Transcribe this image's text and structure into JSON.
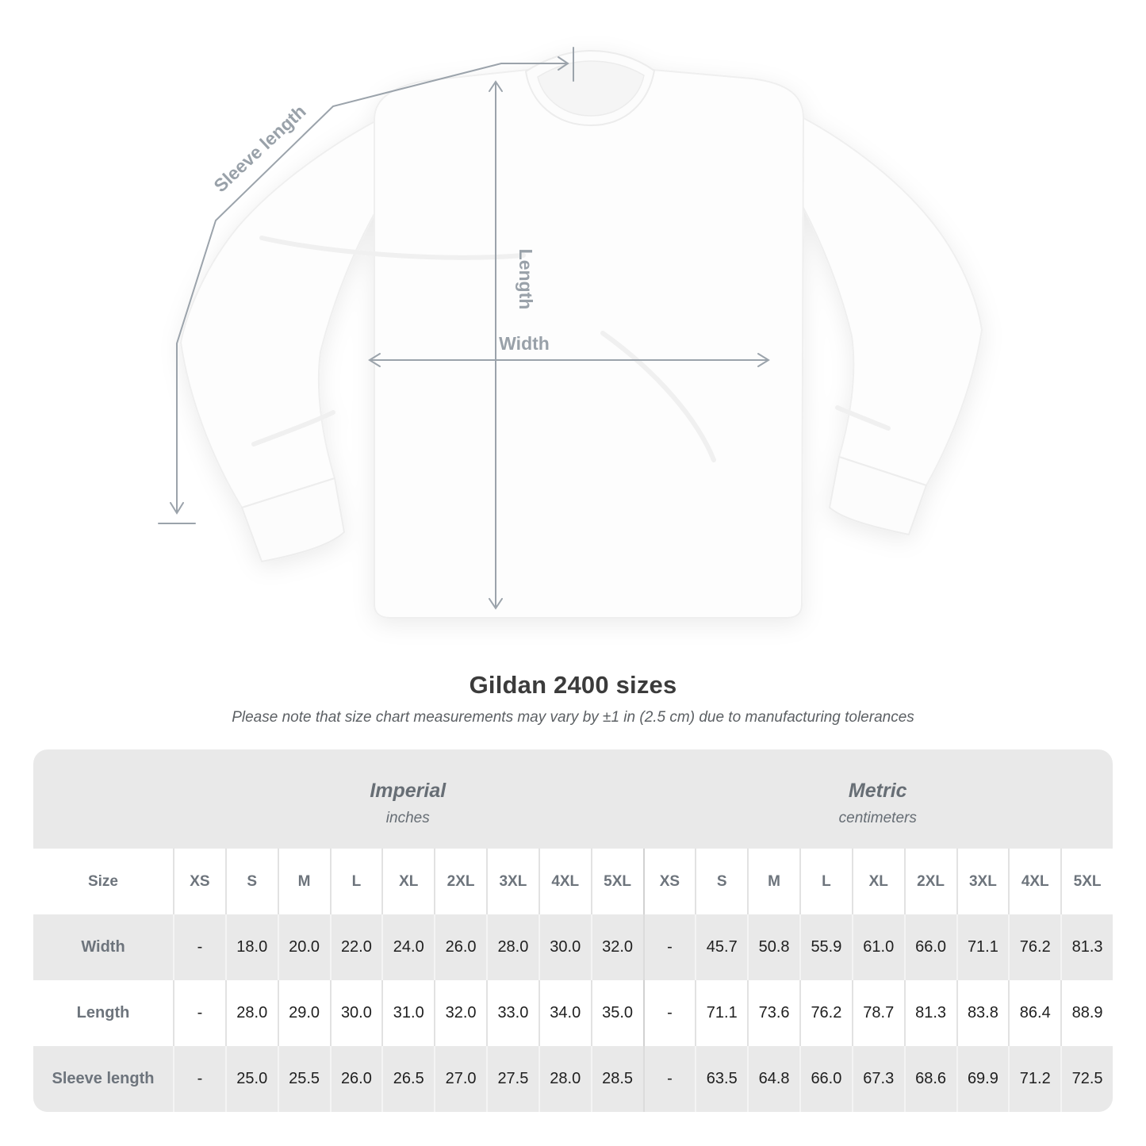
{
  "diagram": {
    "sleeve_length_label": "Sleeve length",
    "length_label": "Length",
    "width_label": "Width"
  },
  "title": "Gildan 2400 sizes",
  "subtitle": "Please note that size chart measurements may vary by ±1 in (2.5 cm) due to manufacturing tolerances",
  "table": {
    "unit_groups": [
      {
        "name": "Imperial",
        "unit": "inches"
      },
      {
        "name": "Metric",
        "unit": "centimeters"
      }
    ],
    "size_label": "Size",
    "sizes": [
      "XS",
      "S",
      "M",
      "L",
      "XL",
      "2XL",
      "3XL",
      "4XL",
      "5XL"
    ],
    "rows": [
      {
        "label": "Width",
        "imperial": [
          "-",
          "18.0",
          "20.0",
          "22.0",
          "24.0",
          "26.0",
          "28.0",
          "30.0",
          "32.0"
        ],
        "metric": [
          "-",
          "45.7",
          "50.8",
          "55.9",
          "61.0",
          "66.0",
          "71.1",
          "76.2",
          "81.3"
        ]
      },
      {
        "label": "Length",
        "imperial": [
          "-",
          "28.0",
          "29.0",
          "30.0",
          "31.0",
          "32.0",
          "33.0",
          "34.0",
          "35.0"
        ],
        "metric": [
          "-",
          "71.1",
          "73.6",
          "76.2",
          "78.7",
          "81.3",
          "83.8",
          "86.4",
          "88.9"
        ]
      },
      {
        "label": "Sleeve length",
        "imperial": [
          "-",
          "25.0",
          "25.5",
          "26.0",
          "26.5",
          "27.0",
          "27.5",
          "28.0",
          "28.5"
        ],
        "metric": [
          "-",
          "63.5",
          "64.8",
          "66.0",
          "67.3",
          "68.6",
          "69.9",
          "71.2",
          "72.5"
        ]
      }
    ]
  },
  "colors": {
    "annotation_gray": "#9ba3ab",
    "label_gray": "#99a1a9",
    "table_band_gray": "#e9e9e9",
    "header_text": "#6d747c",
    "value_text": "#1f1f1f"
  }
}
